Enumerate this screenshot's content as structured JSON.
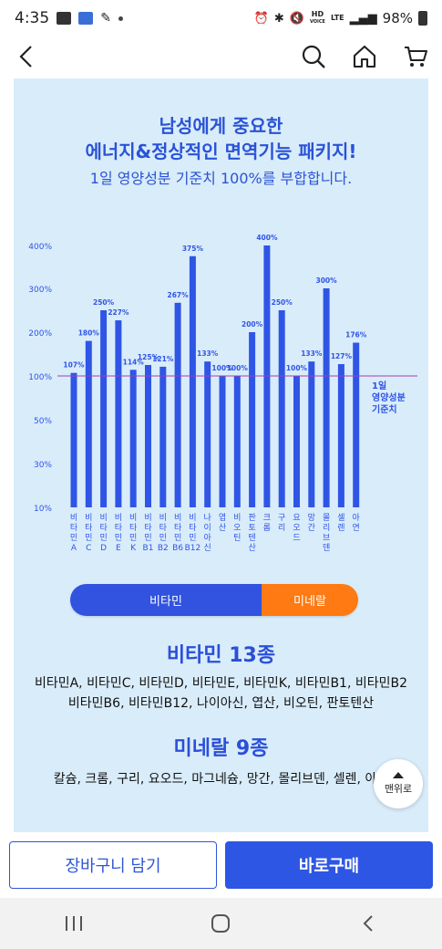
{
  "status_bar": {
    "time": "4:35",
    "network": "HD",
    "network_sub": "VOICE",
    "lte": "LTE",
    "battery": "98%"
  },
  "nav": {
    "icons": [
      "back-icon",
      "search-icon",
      "home-icon",
      "cart-icon"
    ]
  },
  "promo": {
    "headline_line1": "남성에게 중요한",
    "headline_line2": "에너지&정상적인 면역기능 패키지!",
    "subline": "1일 영양성분 기준치 100%를 부합합니다."
  },
  "chart_data": {
    "type": "bar",
    "categories": [
      "비타민A",
      "비타민C",
      "비타민D",
      "비타민E",
      "비타민K",
      "비타민B1",
      "비타민B2",
      "비타민B6",
      "비타민B12",
      "나이아신",
      "엽산",
      "비오틴",
      "판토텐산",
      "크롬",
      "구리",
      "요오드",
      "망간",
      "몰리브덴",
      "셀렌",
      "아연"
    ],
    "category_labels": [
      [
        "비",
        "타",
        "민",
        "A"
      ],
      [
        "비",
        "타",
        "민",
        "C"
      ],
      [
        "비",
        "타",
        "민",
        "D"
      ],
      [
        "비",
        "타",
        "민",
        "E"
      ],
      [
        "비",
        "타",
        "민",
        "K"
      ],
      [
        "비",
        "타",
        "민",
        "B1"
      ],
      [
        "비",
        "타",
        "민",
        "B2"
      ],
      [
        "비",
        "타",
        "민",
        "B6"
      ],
      [
        "비",
        "타",
        "민",
        "B12"
      ],
      [
        "나",
        "이",
        "아",
        "신"
      ],
      [
        "엽",
        "산"
      ],
      [
        "비",
        "오",
        "틴"
      ],
      [
        "판",
        "토",
        "텐",
        "산"
      ],
      [
        "크",
        "롬"
      ],
      [
        "구",
        "리"
      ],
      [
        "요",
        "오",
        "드"
      ],
      [
        "망",
        "간"
      ],
      [
        "몰",
        "리",
        "브",
        "덴"
      ],
      [
        "셀",
        "렌"
      ],
      [
        "아",
        "연"
      ]
    ],
    "values": [
      107,
      180,
      250,
      227,
      114,
      125,
      121,
      267,
      375,
      133,
      100,
      100,
      200,
      400,
      250,
      100,
      133,
      300,
      127,
      176
    ],
    "value_labels": [
      "107%",
      "180%",
      "250%",
      "227%",
      "114%",
      "125%",
      "121%",
      "267%",
      "375%",
      "133%",
      "100%",
      "100%",
      "200%",
      "400%",
      "250%",
      "100%",
      "133%",
      "300%",
      "127%",
      "176%"
    ],
    "y_ticks": [
      {
        "value": 10,
        "label": "10%"
      },
      {
        "value": 30,
        "label": "30%"
      },
      {
        "value": 50,
        "label": "50%"
      },
      {
        "value": 100,
        "label": "100%"
      },
      {
        "value": 200,
        "label": "200%"
      },
      {
        "value": 300,
        "label": "300%"
      },
      {
        "value": 400,
        "label": "400%"
      }
    ],
    "reference": {
      "value": 100,
      "label_lines": [
        "1일",
        "영양성분",
        "기준치"
      ]
    },
    "bar_color": "#2f55e6",
    "reference_color": "#a23fb0",
    "label_color": "#2f55e6"
  },
  "toggle": {
    "vitamin_label": "비타민",
    "mineral_label": "미네랄",
    "vitamin_color": "#3252e0",
    "mineral_color": "#ff7a12"
  },
  "vitamin_section": {
    "title": "비타민 13종",
    "line1": "비타민A, 비타민C, 비타민D, 비타민E, 비타민K, 비타민B1, 비타민B2",
    "line2": "비타민B6, 비타민B12, 나이아신, 엽산, 비오틴, 판토텐산"
  },
  "mineral_section": {
    "title": "미네랄 9종",
    "line1": "칼슘, 크롬, 구리, 요오드, 마그네슘, 망간, 몰리브덴, 셀렌, 아연"
  },
  "scroll_top": {
    "label": "맨위로"
  },
  "actions": {
    "cart_label": "장바구니 담기",
    "buy_label": "바로구매"
  }
}
